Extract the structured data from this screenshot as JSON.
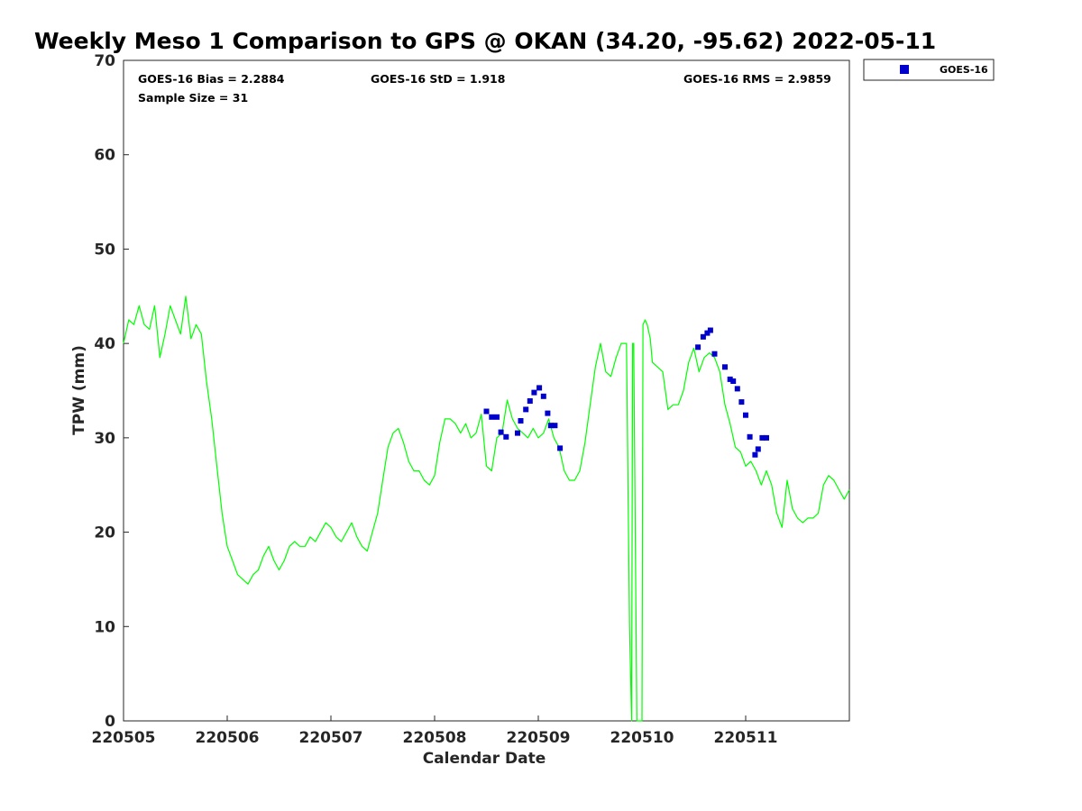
{
  "chart_data": {
    "type": "line",
    "title": "Weekly Meso 1 Comparison to GPS @ OKAN (34.20, -95.62) 2022-05-11",
    "xlabel": "Calendar Date",
    "ylabel": "TPW (mm)",
    "xlim": [
      0,
      7
    ],
    "ylim": [
      0,
      70
    ],
    "x_ticks": [
      0,
      1,
      2,
      3,
      4,
      5,
      6
    ],
    "x_tick_labels": [
      "220505",
      "220506",
      "220507",
      "220508",
      "220509",
      "220510",
      "220511"
    ],
    "y_ticks": [
      0,
      10,
      20,
      30,
      40,
      50,
      60,
      70
    ],
    "y_tick_labels": [
      "0",
      "10",
      "20",
      "30",
      "40",
      "50",
      "60",
      "70"
    ],
    "stats": {
      "bias": "GOES-16 Bias = 2.2884",
      "std": "GOES-16 StD = 1.918",
      "rms": "GOES-16 RMS = 2.9859",
      "sample_size": "Sample Size = 31"
    },
    "legend": {
      "label": "GOES-16",
      "location": "outside top-right"
    },
    "gps_series": {
      "name": "GPS",
      "color": "#00ff00",
      "x": [
        0.0,
        0.05,
        0.1,
        0.15,
        0.2,
        0.25,
        0.3,
        0.35,
        0.4,
        0.45,
        0.5,
        0.55,
        0.6,
        0.65,
        0.7,
        0.75,
        0.8,
        0.85,
        0.9,
        0.95,
        1.0,
        1.05,
        1.1,
        1.15,
        1.2,
        1.25,
        1.3,
        1.35,
        1.4,
        1.45,
        1.5,
        1.55,
        1.6,
        1.65,
        1.7,
        1.75,
        1.8,
        1.85,
        1.9,
        1.95,
        2.0,
        2.05,
        2.1,
        2.15,
        2.2,
        2.25,
        2.3,
        2.35,
        2.4,
        2.45,
        2.5,
        2.55,
        2.6,
        2.65,
        2.7,
        2.75,
        2.8,
        2.85,
        2.9,
        2.95,
        3.0,
        3.05,
        3.1,
        3.15,
        3.2,
        3.25,
        3.3,
        3.35,
        3.4,
        3.45,
        3.5,
        3.55,
        3.6,
        3.65,
        3.7,
        3.75,
        3.8,
        3.85,
        3.9,
        3.95,
        4.0,
        4.05,
        4.1,
        4.15,
        4.2,
        4.25,
        4.3,
        4.35,
        4.4,
        4.45,
        4.5,
        4.55,
        4.6,
        4.65,
        4.7,
        4.75,
        4.8,
        4.85,
        4.88,
        4.9,
        4.91,
        4.92,
        4.95,
        4.98,
        5.0,
        5.01,
        5.03,
        5.05,
        5.08,
        5.1,
        5.15,
        5.2,
        5.25,
        5.3,
        5.35,
        5.4,
        5.45,
        5.5,
        5.55,
        5.6,
        5.65,
        5.7,
        5.75,
        5.8,
        5.85,
        5.9,
        5.95,
        6.0,
        6.05,
        6.1,
        6.15,
        6.2,
        6.25,
        6.3,
        6.35,
        6.4,
        6.45,
        6.5,
        6.55,
        6.6,
        6.65,
        6.7,
        6.75,
        6.8,
        6.85,
        6.9,
        6.95,
        7.0
      ],
      "y": [
        40.0,
        42.5,
        42.0,
        44.0,
        42.0,
        41.5,
        44.0,
        38.5,
        41.0,
        44.0,
        42.5,
        41.0,
        45.0,
        40.5,
        42.0,
        41.0,
        36.0,
        32.0,
        27.0,
        22.0,
        18.5,
        17.0,
        15.5,
        15.0,
        14.5,
        15.5,
        16.0,
        17.5,
        18.5,
        17.0,
        16.0,
        17.0,
        18.5,
        19.0,
        18.5,
        18.5,
        19.5,
        19.0,
        20.0,
        21.0,
        20.5,
        19.5,
        19.0,
        20.0,
        21.0,
        19.5,
        18.5,
        18.0,
        20.0,
        22.0,
        25.5,
        29.0,
        30.5,
        31.0,
        29.5,
        27.5,
        26.5,
        26.5,
        25.5,
        25.0,
        26.0,
        29.5,
        32.0,
        32.0,
        31.5,
        30.5,
        31.5,
        30.0,
        30.5,
        32.5,
        27.0,
        26.5,
        30.0,
        30.5,
        34.0,
        32.0,
        31.0,
        30.5,
        30.0,
        31.0,
        30.0,
        30.5,
        32.0,
        30.0,
        29.0,
        26.5,
        25.5,
        25.5,
        26.5,
        29.5,
        33.5,
        37.5,
        40.0,
        37.0,
        36.5,
        38.5,
        40.0,
        40.0,
        10.0,
        0.0,
        40.0,
        40.0,
        0.0,
        0.0,
        0.0,
        42.0,
        42.5,
        42.0,
        40.5,
        38.0,
        37.5,
        37.0,
        33.0,
        33.5,
        33.5,
        35.0,
        38.0,
        39.5,
        37.0,
        38.5,
        39.0,
        38.5,
        37.0,
        33.5,
        31.5,
        29.0,
        28.5,
        27.0,
        27.5,
        26.5,
        25.0,
        26.5,
        25.0,
        22.0,
        20.5,
        25.5,
        22.5,
        21.5,
        21.0,
        21.5,
        21.5,
        22.0,
        25.0,
        26.0,
        25.5,
        24.5,
        23.5,
        24.5
      ]
    },
    "series": [
      {
        "name": "GOES-16",
        "type": "scatter",
        "color": "#0000cc",
        "x": [
          3.5,
          3.55,
          3.6,
          3.64,
          3.69,
          3.8,
          3.83,
          3.88,
          3.92,
          3.96,
          4.01,
          4.05,
          4.09,
          4.12,
          4.16,
          4.21,
          5.54,
          5.59,
          5.63,
          5.66,
          5.7,
          5.8,
          5.85,
          5.88,
          5.92,
          5.96,
          6.0,
          6.04,
          6.09,
          6.12,
          6.16,
          6.2
        ],
        "y": [
          32.8,
          32.2,
          32.2,
          30.6,
          30.1,
          30.5,
          31.8,
          33.0,
          33.9,
          34.8,
          35.3,
          34.4,
          32.6,
          31.3,
          31.3,
          28.9,
          39.6,
          40.7,
          41.1,
          41.4,
          38.9,
          37.5,
          36.2,
          36.0,
          35.2,
          33.8,
          32.4,
          30.1,
          28.2,
          28.8,
          30.0,
          30.0
        ]
      }
    ]
  }
}
